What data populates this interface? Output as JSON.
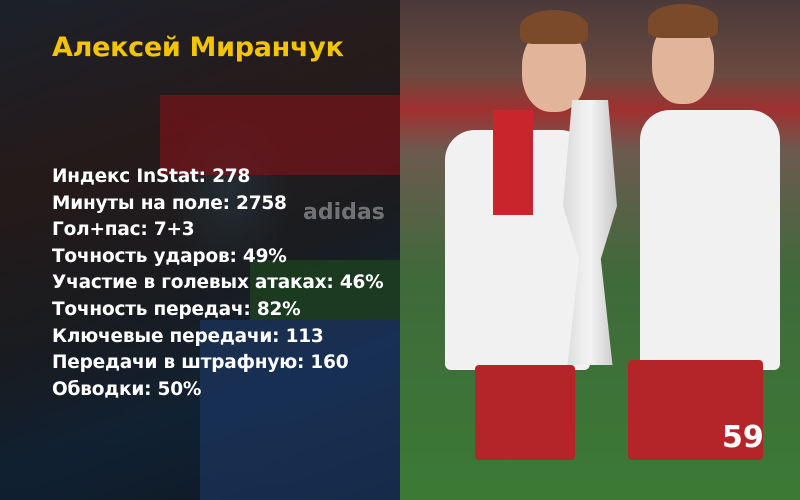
{
  "title": "Алексей Миранчук",
  "stats": [
    "Индекс InStat: 278",
    "Минуты на поле: 2758",
    "Гол+пас: 7+3",
    "Точность ударов: 49%",
    "Участие в голевых атаках: 46%",
    "Точность передач: 82%",
    "Ключевые передачи: 113",
    "Передачи в штрафную: 160",
    "Обводки: 50%"
  ],
  "photo": {
    "banner_logo_text": "adidas",
    "shirt_number": "59"
  },
  "colors": {
    "title": "#f5c400",
    "stats_text": "#ffffff"
  }
}
